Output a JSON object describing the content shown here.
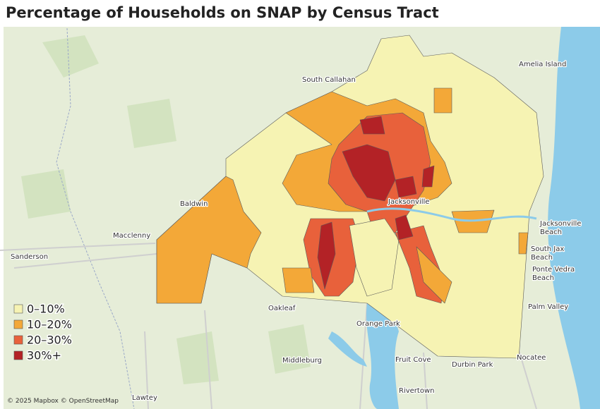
{
  "title": "Percentage of Households on SNAP by Census Tract",
  "legend": [
    {
      "label": "0–10%",
      "color": "#f6f3b3"
    },
    {
      "label": "10–20%",
      "color": "#f3a838"
    },
    {
      "label": "20–30%",
      "color": "#e8613b"
    },
    {
      "label": "30%+",
      "color": "#b32226"
    }
  ],
  "places": [
    [
      "South Callahan"
    ],
    [
      "Amelia Island"
    ],
    [
      "Jacksonville"
    ],
    [
      "Macclenny"
    ],
    [
      "Baldwin"
    ],
    [
      "Sanderson"
    ],
    [
      "Jacksonville",
      "Beach"
    ],
    [
      "South Jax",
      "Beach"
    ],
    [
      "Ponte Vedra",
      "Beach"
    ],
    [
      "Palm Valley"
    ],
    [
      "Oakleaf"
    ],
    [
      "Orange Park"
    ],
    [
      "Middleburg"
    ],
    [
      "Fruit Cove"
    ],
    [
      "Durbin Park"
    ],
    [
      "Nocatee"
    ],
    [
      "Rivertown"
    ],
    [
      "Lawtey"
    ]
  ],
  "attribution": "© 2025 Mapbox © OpenStreetMap"
}
